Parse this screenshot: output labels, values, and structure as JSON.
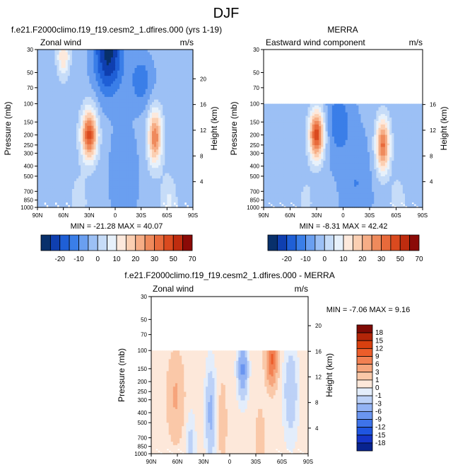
{
  "page_title": "DJF",
  "colors": {
    "main_scale": [
      "#08306b",
      "#0f3fb0",
      "#1f5fd6",
      "#3a7ee8",
      "#6a9ff0",
      "#9cc0f5",
      "#c6dcf8",
      "#e7f1fb",
      "#fde9dc",
      "#fbcfb2",
      "#f6ad86",
      "#ef8a5c",
      "#e86a3b",
      "#da4a1f",
      "#bf2c0f",
      "#8b0a07"
    ],
    "diff_scale": [
      "#08238f",
      "#1535c8",
      "#1f55e0",
      "#3e73ea",
      "#6a95f0",
      "#93b3f4",
      "#bcd1f7",
      "#e3edfb",
      "#fde8da",
      "#fac8a8",
      "#f6a57c",
      "#f28052",
      "#ec5d2a",
      "#d9400f",
      "#b32508",
      "#7f0a05"
    ]
  },
  "panels": [
    {
      "key": "model",
      "title": "f.e21.F2000climo.f19_f19.cesm2_1.dfires.000 (yrs 1-19)",
      "left_label": "Zonal wind",
      "right_label": "m/s",
      "min_max": "MIN = -21.28   MAX =  40.07"
    },
    {
      "key": "merra",
      "title": "MERRA",
      "left_label": "Eastward wind component",
      "right_label": "m/s",
      "min_max": "MIN =  -8.31   MAX =  42.42"
    },
    {
      "key": "diff",
      "title": "f.e21.F2000climo.f19_f19.cesm2_1.dfires.000 - MERRA",
      "left_label": "Zonal wind",
      "right_label": "m/s",
      "min_max": "MIN =  -7.06   MAX =   9.16"
    }
  ],
  "main_colorbar_labels": [
    "-20",
    "-10",
    "0",
    "10",
    "20",
    "30",
    "50",
    "70"
  ],
  "diff_colorbar_labels": [
    "18",
    "15",
    "12",
    "9",
    "6",
    "3",
    "1",
    "0",
    "-1",
    "-3",
    "-6",
    "-9",
    "-12",
    "-15",
    "-18"
  ],
  "chart_data": [
    {
      "type": "heatmap",
      "title": "f.e21.F2000climo.f19_f19.cesm2_1.dfires.000 (yrs 1-19)",
      "subtitle": "Zonal wind",
      "units": "m/s",
      "xlabel": "",
      "ylabel": "Pressure (mb)",
      "y2label": "Height (km)",
      "x_ticks": [
        "90N",
        "60N",
        "30N",
        "0",
        "30S",
        "60S",
        "90S"
      ],
      "xlim": [
        90,
        -90
      ],
      "y_ticks": [
        30,
        50,
        70,
        100,
        150,
        200,
        250,
        300,
        400,
        500,
        700,
        850,
        1000
      ],
      "ylim": [
        1000,
        30
      ],
      "y_scale": "log",
      "y2_ticks": [
        4,
        8,
        12,
        16,
        20
      ],
      "contour_levels": [
        -20,
        -15,
        -10,
        -5,
        0,
        5,
        10,
        15,
        20,
        25,
        30,
        35,
        40,
        50,
        60,
        70
      ],
      "min": -21.28,
      "max": 40.07,
      "features": [
        {
          "kind": "westerly jet",
          "lat": 30,
          "pressure_mb": 200,
          "value": 40.07
        },
        {
          "kind": "westerly jet",
          "lat": -45,
          "pressure_mb": 200,
          "value": 32
        },
        {
          "kind": "easterly",
          "lat": 10,
          "pressure_mb": 30,
          "value": -21.28
        }
      ]
    },
    {
      "type": "heatmap",
      "title": "MERRA",
      "subtitle": "Eastward wind component",
      "units": "m/s",
      "xlabel": "",
      "ylabel": "Pressure (mb)",
      "y2label": "Height (km)",
      "x_ticks": [
        "90N",
        "60N",
        "30N",
        "0",
        "30S",
        "60S",
        "90S"
      ],
      "xlim": [
        90,
        -90
      ],
      "y_ticks": [
        30,
        50,
        70,
        100,
        150,
        200,
        250,
        300,
        400,
        500,
        700,
        850,
        1000
      ],
      "ylim": [
        1000,
        30
      ],
      "y_scale": "log",
      "y2_ticks": [
        4,
        8,
        12,
        16
      ],
      "data_top_mb": 100,
      "contour_levels": [
        -20,
        -15,
        -10,
        -5,
        0,
        5,
        10,
        15,
        20,
        25,
        30,
        35,
        40,
        50,
        60,
        70
      ],
      "min": -8.31,
      "max": 42.42,
      "features": [
        {
          "kind": "westerly jet",
          "lat": 30,
          "pressure_mb": 200,
          "value": 42.42
        },
        {
          "kind": "westerly jet",
          "lat": -45,
          "pressure_mb": 250,
          "value": 35
        },
        {
          "kind": "easterly",
          "lat": 5,
          "pressure_mb": 150,
          "value": -8.31
        }
      ]
    },
    {
      "type": "heatmap",
      "title": "f.e21.F2000climo.f19_f19.cesm2_1.dfires.000 - MERRA",
      "subtitle": "Zonal wind",
      "units": "m/s",
      "xlabel": "",
      "ylabel": "Pressure (mb)",
      "y2label": "Height (km)",
      "x_ticks": [
        "90N",
        "60N",
        "30N",
        "0",
        "30S",
        "60S",
        "90S"
      ],
      "xlim": [
        90,
        -90
      ],
      "y_ticks": [
        30,
        50,
        70,
        100,
        150,
        200,
        250,
        300,
        400,
        500,
        700,
        850,
        1000
      ],
      "ylim": [
        1000,
        30
      ],
      "y_scale": "log",
      "y2_ticks": [
        4,
        8,
        12,
        16,
        20
      ],
      "data_top_mb": 100,
      "contour_levels": [
        -18,
        -15,
        -12,
        -9,
        -6,
        -3,
        -1,
        0,
        1,
        3,
        6,
        9,
        12,
        15,
        18
      ],
      "min": -7.06,
      "max": 9.16,
      "features": [
        {
          "kind": "positive",
          "lat": 62,
          "pressure_mb": 300,
          "value": 3
        },
        {
          "kind": "positive",
          "lat": -48,
          "pressure_mb": 120,
          "value": 9.16
        },
        {
          "kind": "negative",
          "lat": 22,
          "pressure_mb": 400,
          "value": -4
        },
        {
          "kind": "negative",
          "lat": -15,
          "pressure_mb": 150,
          "value": -7.06
        }
      ]
    }
  ]
}
